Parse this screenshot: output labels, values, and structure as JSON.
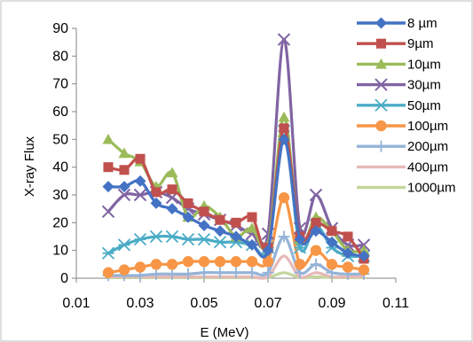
{
  "chart_data": {
    "type": "line",
    "title": "",
    "xlabel": "E (MeV)",
    "ylabel": "X-ray Flux",
    "xlim": [
      0.01,
      0.11
    ],
    "ylim": [
      0,
      90
    ],
    "xticks": [
      "0.01",
      "0.03",
      "0.05",
      "0.07",
      "0.09",
      "0.11"
    ],
    "xtick_values": [
      0.01,
      0.03,
      0.05,
      0.07,
      0.09,
      0.11
    ],
    "yticks": [
      "0",
      "10",
      "20",
      "30",
      "40",
      "50",
      "60",
      "70",
      "80",
      "90"
    ],
    "ytick_values": [
      0,
      10,
      20,
      30,
      40,
      50,
      60,
      70,
      80,
      90
    ],
    "legend_position": "right",
    "x": [
      0.02,
      0.025,
      0.03,
      0.035,
      0.04,
      0.045,
      0.05,
      0.055,
      0.06,
      0.065,
      0.07,
      0.075,
      0.08,
      0.085,
      0.09,
      0.095,
      0.1
    ],
    "series": [
      {
        "name": "8 µm",
        "color": "#4472C4",
        "marker": "diamond",
        "values": [
          33,
          33,
          35,
          27,
          25,
          22,
          19,
          17,
          15,
          12,
          10,
          50,
          14,
          17,
          13,
          9,
          8
        ]
      },
      {
        "name": "9µm",
        "color": "#C0504D",
        "marker": "square",
        "values": [
          40,
          39,
          43,
          31,
          32,
          27,
          24,
          21,
          20,
          22,
          11,
          54,
          15,
          20,
          17,
          15,
          7
        ]
      },
      {
        "name": "10µm",
        "color": "#9BBB59",
        "marker": "triangle",
        "values": [
          50,
          45,
          42,
          33,
          38,
          22,
          26,
          22,
          15,
          18,
          12,
          58,
          14,
          22,
          17,
          10,
          10
        ]
      },
      {
        "name": "30µm",
        "color": "#8064A2",
        "marker": "x",
        "values": [
          24,
          30,
          30,
          31,
          29,
          25,
          23,
          21,
          19,
          16,
          16,
          86,
          18,
          30,
          18,
          12,
          12
        ]
      },
      {
        "name": "50µm",
        "color": "#4BACC6",
        "marker": "star",
        "values": [
          9,
          12,
          14,
          15,
          15,
          14,
          14,
          13,
          13,
          12,
          11,
          53,
          11,
          19,
          11,
          8,
          8
        ]
      },
      {
        "name": "100µm",
        "color": "#F79646",
        "marker": "circle",
        "values": [
          2,
          3,
          4,
          5,
          5,
          6,
          6,
          6,
          6,
          6,
          6,
          29,
          5,
          10,
          5,
          4,
          3
        ]
      },
      {
        "name": "200µm",
        "color": "#95B3D7",
        "marker": "plus",
        "values": [
          1,
          1,
          1,
          1.5,
          1.5,
          1.5,
          2,
          2,
          2,
          2,
          2,
          15,
          2,
          5,
          2,
          1.5,
          1.5
        ]
      },
      {
        "name": "400µm",
        "color": "#E6B9B8",
        "marker": "none",
        "values": [
          0.5,
          0.5,
          0.5,
          0.5,
          0.5,
          0.5,
          0.5,
          0.5,
          0.5,
          0.5,
          0.5,
          8,
          0.5,
          2,
          0.5,
          0.5,
          0.5
        ]
      },
      {
        "name": "1000µm",
        "color": "#C3D69B",
        "marker": "none",
        "values": [
          0.2,
          0.2,
          0.2,
          0.2,
          0.2,
          0.2,
          0.2,
          0.2,
          0.2,
          0.2,
          0.2,
          2,
          0.2,
          0.5,
          0.2,
          0.2,
          0.2
        ]
      }
    ]
  }
}
